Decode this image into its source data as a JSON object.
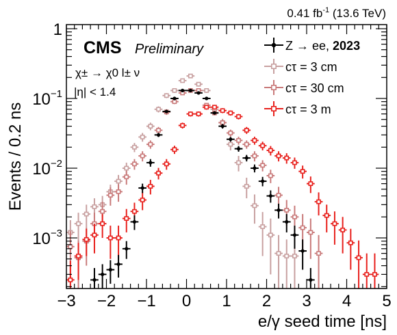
{
  "chart_data": {
    "type": "scatter",
    "lumi_label": "0.41 fb",
    "lumi_sup": "-1",
    "energy_label": "(13.6 TeV)",
    "cms_label": "CMS",
    "prelim_label": "Preliminary",
    "process_label": "χ± → χ0 l± ν",
    "eta_label": "|η| < 1.4",
    "xlabel": "e/γ seed time [ns]",
    "ylabel": "Events / 0.2 ns",
    "xlim": [
      -3,
      5
    ],
    "ylim": [
      0.0002,
      1.2
    ],
    "yscale": "log",
    "xticks": [
      -3,
      -2,
      -1,
      0,
      1,
      2,
      3,
      4,
      5
    ],
    "xtick_labels": [
      "−3",
      "−2",
      "−1",
      "0",
      "1",
      "2",
      "3",
      "4",
      "5"
    ],
    "ytick_labels": [
      {
        "value": 1,
        "base": "1",
        "exp": ""
      },
      {
        "value": 0.1,
        "base": "10",
        "exp": "−1"
      },
      {
        "value": 0.01,
        "base": "10",
        "exp": "−2"
      },
      {
        "value": 0.001,
        "base": "10",
        "exp": "−3"
      }
    ],
    "legend_position": "top-right",
    "series": [
      {
        "name": "Z → ee,",
        "name_bold": "2023",
        "color": "#000000",
        "marker": "filled",
        "x": [
          -2.3,
          -2.1,
          -1.9,
          -1.7,
          -1.5,
          -1.3,
          -1.1,
          -0.9,
          -0.7,
          -0.5,
          -0.3,
          -0.1,
          0.1,
          0.3,
          0.5,
          0.7,
          0.9,
          1.1,
          1.3,
          1.5,
          1.7,
          1.9,
          2.1,
          2.3,
          2.5,
          2.7,
          2.9,
          3.1
        ],
        "y": [
          0.00025,
          0.0003,
          0.00035,
          0.00042,
          0.0007,
          0.0017,
          0.0052,
          0.012,
          0.03,
          0.065,
          0.1,
          0.13,
          0.13,
          0.12,
          0.1,
          0.062,
          0.04,
          0.026,
          0.019,
          0.014,
          0.01,
          0.0065,
          0.004,
          0.0025,
          0.0017,
          0.0011,
          0.00065,
          0.00025
        ],
        "err": [
          0.00012,
          0.00012,
          0.00013,
          0.00015,
          0.0002,
          0.0004,
          0.0008,
          0.0015,
          0.002,
          0.003,
          0.004,
          0.005,
          0.005,
          0.005,
          0.004,
          0.003,
          0.003,
          0.002,
          0.0018,
          0.0015,
          0.0013,
          0.001,
          0.0008,
          0.0006,
          0.0005,
          0.0004,
          0.0003,
          0.00012
        ]
      },
      {
        "name": "cτ = 3 cm",
        "color": "#c8a0a0",
        "marker": "open",
        "x": [
          -2.9,
          -2.7,
          -2.5,
          -2.3,
          -2.1,
          -1.9,
          -1.7,
          -1.5,
          -1.3,
          -1.1,
          -0.9,
          -0.7,
          -0.5,
          -0.3,
          -0.1,
          0.1,
          0.3,
          0.5,
          0.7,
          0.9,
          1.1,
          1.3,
          1.5,
          1.7,
          1.9,
          2.1,
          2.3,
          2.5,
          2.7
        ],
        "y": [
          0.0012,
          0.0016,
          0.0022,
          0.0028,
          0.003,
          0.0046,
          0.0065,
          0.01,
          0.02,
          0.028,
          0.04,
          0.07,
          0.11,
          0.13,
          0.18,
          0.21,
          0.16,
          0.13,
          0.07,
          0.045,
          0.022,
          0.012,
          0.0055,
          0.0029,
          0.00145,
          0.0011,
          0.0006,
          0.00055,
          0.00055
        ],
        "err": [
          0.0006,
          0.0007,
          0.0008,
          0.0009,
          0.001,
          0.0012,
          0.0015,
          0.002,
          0.003,
          0.004,
          0.005,
          0.007,
          0.009,
          0.01,
          0.012,
          0.013,
          0.012,
          0.01,
          0.007,
          0.006,
          0.004,
          0.003,
          0.0018,
          0.0013,
          0.0009,
          0.0008,
          0.0005,
          0.0004,
          0.0004
        ]
      },
      {
        "name": "cτ = 30 cm",
        "color": "#c97a7a",
        "marker": "open",
        "x": [
          -2.9,
          -2.7,
          -2.5,
          -2.3,
          -2.1,
          -1.9,
          -1.7,
          -1.5,
          -1.3,
          -1.1,
          -0.9,
          -0.7,
          -0.5,
          -0.3,
          -0.1,
          0.1,
          0.3,
          0.5,
          0.7,
          0.9,
          1.1,
          1.3,
          1.5,
          1.7,
          1.9,
          2.1,
          2.3,
          2.5,
          2.7,
          2.9,
          3.1,
          3.3
        ],
        "y": [
          0.00075,
          0.00052,
          0.0009,
          0.0016,
          0.0024,
          0.0041,
          0.0046,
          0.0075,
          0.0115,
          0.015,
          0.022,
          0.035,
          0.064,
          0.09,
          0.12,
          0.13,
          0.13,
          0.08,
          0.062,
          0.045,
          0.032,
          0.025,
          0.022,
          0.015,
          0.011,
          0.0078,
          0.0041,
          0.0025,
          0.002,
          0.0014,
          0.0012,
          0.0006
        ],
        "err": [
          0.0005,
          0.0004,
          0.0005,
          0.0007,
          0.0009,
          0.0012,
          0.0013,
          0.0017,
          0.002,
          0.0025,
          0.003,
          0.004,
          0.006,
          0.007,
          0.008,
          0.008,
          0.008,
          0.006,
          0.005,
          0.0045,
          0.0037,
          0.0033,
          0.003,
          0.0025,
          0.002,
          0.0017,
          0.0013,
          0.001,
          0.0009,
          0.0008,
          0.0007,
          0.0005
        ]
      },
      {
        "name": "cτ = 3 m",
        "color": "#e8201c",
        "marker": "open",
        "x": [
          -2.9,
          -2.7,
          -2.5,
          -2.3,
          -2.1,
          -1.9,
          -1.7,
          -1.5,
          -1.3,
          -1.1,
          -0.9,
          -0.7,
          -0.5,
          -0.3,
          -0.1,
          0.1,
          0.3,
          0.5,
          0.7,
          0.9,
          1.1,
          1.3,
          1.5,
          1.7,
          1.9,
          2.1,
          2.3,
          2.5,
          2.7,
          2.9,
          3.1,
          3.3,
          3.5,
          3.7,
          3.9,
          4.1,
          4.3,
          4.5,
          4.7
        ],
        "y": [
          0.00025,
          0.00055,
          0.00095,
          0.0011,
          0.0016,
          0.001,
          0.001,
          0.0019,
          0.0024,
          0.0035,
          0.0055,
          0.0085,
          0.0115,
          0.0185,
          0.041,
          0.06,
          0.06,
          0.075,
          0.075,
          0.067,
          0.062,
          0.055,
          0.035,
          0.025,
          0.021,
          0.018,
          0.015,
          0.014,
          0.012,
          0.009,
          0.006,
          0.0033,
          0.0021,
          0.0016,
          0.0013,
          0.00085,
          0.00052,
          0.0003,
          0.0003
        ],
        "err": [
          0.00022,
          0.0003,
          0.0004,
          0.0005,
          0.0006,
          0.0005,
          0.0005,
          0.0007,
          0.0008,
          0.001,
          0.0013,
          0.0016,
          0.002,
          0.0025,
          0.004,
          0.005,
          0.005,
          0.006,
          0.006,
          0.0055,
          0.0052,
          0.005,
          0.004,
          0.0033,
          0.003,
          0.0028,
          0.0025,
          0.0024,
          0.0022,
          0.0019,
          0.0016,
          0.0012,
          0.0009,
          0.0008,
          0.0007,
          0.0005,
          0.0004,
          0.0003,
          0.0003
        ]
      }
    ]
  }
}
